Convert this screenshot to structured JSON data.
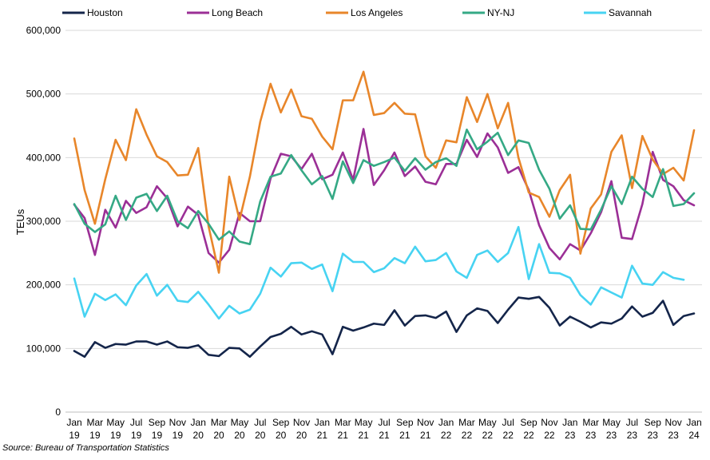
{
  "source_note": "Source: Bureau of Transportation Statistics",
  "chart_data": {
    "type": "line",
    "xlabel": "",
    "ylabel": "TEUs",
    "ylim": [
      0,
      600000
    ],
    "yticks": [
      0,
      100000,
      200000,
      300000,
      400000,
      500000,
      600000
    ],
    "ytick_labels": [
      "0",
      "100,000",
      "200,000",
      "300,000",
      "400,000",
      "500,000",
      "600,000"
    ],
    "grid": "horizontal",
    "legend_position": "top",
    "x": [
      "Jan 19",
      "Feb 19",
      "Mar 19",
      "Apr 19",
      "May 19",
      "Jun 19",
      "Jul 19",
      "Aug 19",
      "Sep 19",
      "Oct 19",
      "Nov 19",
      "Dec 19",
      "Jan 20",
      "Feb 20",
      "Mar 20",
      "Apr 20",
      "May 20",
      "Jun 20",
      "Jul 20",
      "Aug 20",
      "Sep 20",
      "Oct 20",
      "Nov 20",
      "Dec 20",
      "Jan 21",
      "Feb 21",
      "Mar 21",
      "Apr 21",
      "May 21",
      "Jun 21",
      "Jul 21",
      "Aug 21",
      "Sep 21",
      "Oct 21",
      "Nov 21",
      "Dec 21",
      "Jan 22",
      "Feb 22",
      "Mar 22",
      "Apr 22",
      "May 22",
      "Jun 22",
      "Jul 22",
      "Aug 22",
      "Sep 22",
      "Oct 22",
      "Nov 22",
      "Dec 22",
      "Jan 23",
      "Feb 23",
      "Mar 23",
      "Apr 23",
      "May 23",
      "Jun 23",
      "Jul 23",
      "Aug 23",
      "Sep 23",
      "Oct 23",
      "Nov 23",
      "Dec 23",
      "Jan 24"
    ],
    "xtick_labels": [
      {
        "month": "Jan",
        "year": "19"
      },
      {
        "month": "Mar",
        "year": "19"
      },
      {
        "month": "May",
        "year": "19"
      },
      {
        "month": "Jul",
        "year": "19"
      },
      {
        "month": "Sep",
        "year": "19"
      },
      {
        "month": "Nov",
        "year": "19"
      },
      {
        "month": "Jan",
        "year": "20"
      },
      {
        "month": "Mar",
        "year": "20"
      },
      {
        "month": "May",
        "year": "20"
      },
      {
        "month": "Jul",
        "year": "20"
      },
      {
        "month": "Sep",
        "year": "20"
      },
      {
        "month": "Nov",
        "year": "20"
      },
      {
        "month": "Jan",
        "year": "21"
      },
      {
        "month": "Mar",
        "year": "21"
      },
      {
        "month": "May",
        "year": "21"
      },
      {
        "month": "Jul",
        "year": "21"
      },
      {
        "month": "Sep",
        "year": "21"
      },
      {
        "month": "Nov",
        "year": "21"
      },
      {
        "month": "Jan",
        "year": "22"
      },
      {
        "month": "Mar",
        "year": "22"
      },
      {
        "month": "May",
        "year": "22"
      },
      {
        "month": "Jul",
        "year": "22"
      },
      {
        "month": "Sep",
        "year": "22"
      },
      {
        "month": "Nov",
        "year": "22"
      },
      {
        "month": "Jan",
        "year": "23"
      },
      {
        "month": "Mar",
        "year": "23"
      },
      {
        "month": "May",
        "year": "23"
      },
      {
        "month": "Jul",
        "year": "23"
      },
      {
        "month": "Sep",
        "year": "23"
      },
      {
        "month": "Nov",
        "year": "23"
      },
      {
        "month": "Jan",
        "year": "24"
      }
    ],
    "series": [
      {
        "name": "Houston",
        "color": "#14254a",
        "values": [
          96000,
          87000,
          110000,
          101000,
          107000,
          106000,
          111000,
          111000,
          106000,
          111000,
          102000,
          101000,
          105000,
          90000,
          88000,
          101000,
          100000,
          87000,
          103000,
          118000,
          123000,
          134000,
          122000,
          127000,
          122000,
          91000,
          134000,
          128000,
          133000,
          139000,
          137000,
          160000,
          136000,
          151000,
          152000,
          148000,
          158000,
          126000,
          152000,
          163000,
          159000,
          140000,
          161000,
          180000,
          178000,
          181000,
          164000,
          136000,
          150000,
          142000,
          133000,
          141000,
          139000,
          147000,
          166000,
          150000,
          156000,
          175000,
          137000,
          151000,
          155000
        ]
      },
      {
        "name": "Long Beach",
        "color": "#9b2f96",
        "values": [
          326000,
          305000,
          247000,
          318000,
          290000,
          332000,
          313000,
          322000,
          355000,
          336000,
          292000,
          323000,
          310000,
          250000,
          235000,
          255000,
          313000,
          300000,
          300000,
          367000,
          406000,
          402000,
          382000,
          406000,
          366000,
          373000,
          408000,
          365000,
          445000,
          357000,
          380000,
          408000,
          371000,
          386000,
          362000,
          358000,
          390000,
          390000,
          428000,
          401000,
          438000,
          416000,
          376000,
          385000,
          349000,
          294000,
          258000,
          240000,
          264000,
          254000,
          281000,
          314000,
          363000,
          274000,
          272000,
          327000,
          409000,
          365000,
          355000,
          333000,
          325000
        ]
      },
      {
        "name": "Los Angeles",
        "color": "#e8862a",
        "values": [
          430000,
          349000,
          296000,
          366000,
          428000,
          396000,
          476000,
          436000,
          402000,
          393000,
          372000,
          373000,
          415000,
          292000,
          219000,
          370000,
          302000,
          370000,
          456000,
          516000,
          471000,
          507000,
          465000,
          461000,
          433000,
          413000,
          490000,
          490000,
          535000,
          467000,
          470000,
          486000,
          469000,
          468000,
          402000,
          384000,
          427000,
          424000,
          495000,
          456000,
          500000,
          446000,
          486000,
          400000,
          345000,
          338000,
          307000,
          349000,
          373000,
          249000,
          320000,
          342000,
          409000,
          435000,
          352000,
          434000,
          397000,
          374000,
          384000,
          364000,
          443000
        ]
      },
      {
        "name": "NY-NJ",
        "color": "#35a985",
        "values": [
          327000,
          296000,
          283000,
          295000,
          340000,
          302000,
          337000,
          343000,
          316000,
          340000,
          300000,
          289000,
          316000,
          296000,
          271000,
          284000,
          268000,
          264000,
          331000,
          370000,
          375000,
          404000,
          380000,
          358000,
          371000,
          335000,
          394000,
          360000,
          396000,
          387000,
          393000,
          400000,
          379000,
          399000,
          381000,
          393000,
          399000,
          387000,
          444000,
          413000,
          425000,
          439000,
          404000,
          427000,
          423000,
          381000,
          351000,
          304000,
          325000,
          288000,
          287000,
          318000,
          355000,
          327000,
          370000,
          351000,
          338000,
          382000,
          324000,
          327000,
          344000
        ]
      },
      {
        "name": "Savannah",
        "color": "#47d3f2",
        "values": [
          210000,
          150000,
          186000,
          176000,
          185000,
          168000,
          199000,
          217000,
          183000,
          200000,
          175000,
          173000,
          189000,
          169000,
          147000,
          167000,
          155000,
          161000,
          186000,
          227000,
          213000,
          234000,
          235000,
          225000,
          232000,
          190000,
          249000,
          236000,
          236000,
          220000,
          226000,
          242000,
          234000,
          260000,
          237000,
          239000,
          250000,
          221000,
          211000,
          247000,
          254000,
          236000,
          250000,
          291000,
          209000,
          264000,
          219000,
          218000,
          211000,
          184000,
          169000,
          196000,
          188000,
          180000,
          230000,
          202000,
          200000,
          220000,
          211000,
          208000,
          null
        ]
      }
    ]
  }
}
